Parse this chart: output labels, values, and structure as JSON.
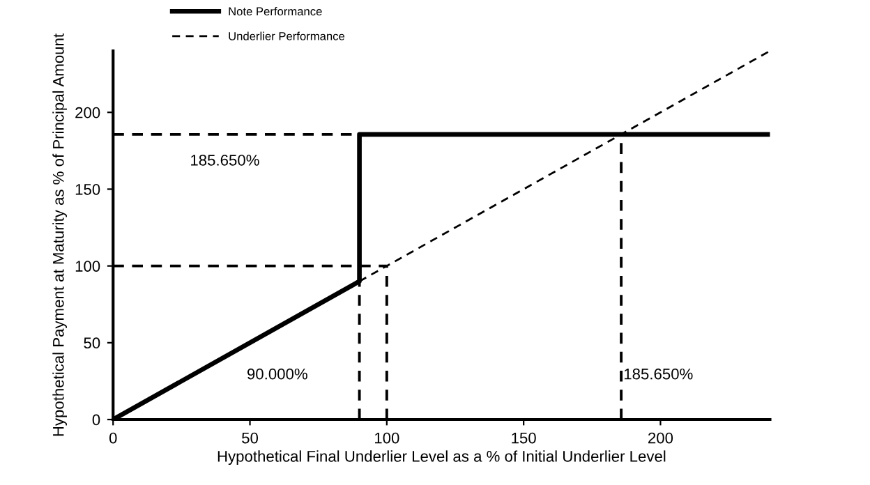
{
  "chart_data": {
    "type": "line",
    "xlabel": "Hypothetical Final Underlier Level as a % of Initial Underlier Level",
    "ylabel": "Hypothetical Payment at Maturity as % of Principal Amount",
    "series": [
      {
        "name": "Note Performance",
        "color": "#000000",
        "line_style": "solid",
        "x": [
          0,
          90,
          90,
          240
        ],
        "values": [
          0,
          90,
          185.65,
          185.65
        ]
      },
      {
        "name": "Underlier Performance",
        "color": "#000000",
        "line_style": "dashed",
        "x": [
          90,
          240
        ],
        "values": [
          90,
          240
        ]
      },
      {
        "color": "#000000",
        "line_style": "dashed",
        "x": [
          0,
          90
        ],
        "values": [
          185.65,
          185.65
        ]
      },
      {
        "color": "#000000",
        "line_style": "dashed",
        "x": [
          0,
          100
        ],
        "values": [
          100,
          100
        ]
      },
      {
        "color": "#000000",
        "line_style": "dashed",
        "x": [
          90,
          90
        ],
        "values": [
          0,
          185.65
        ]
      },
      {
        "color": "#000000",
        "line_style": "dashed",
        "x": [
          100,
          100
        ],
        "values": [
          0,
          100
        ]
      },
      {
        "color": "#000000",
        "line_style": "dashed",
        "x": [
          185.65,
          185.65
        ],
        "values": [
          0,
          185.65
        ]
      }
    ],
    "annotations": [
      "185.650%",
      "90.000%",
      "185.650%"
    ],
    "xlim": [
      0,
      240
    ],
    "ylim": [
      0,
      240
    ],
    "xticks": [
      0,
      50,
      100,
      150,
      200
    ],
    "yticks": [
      0,
      50,
      100,
      150,
      200
    ],
    "grid": false,
    "legend": "top",
    "marker": "none"
  }
}
